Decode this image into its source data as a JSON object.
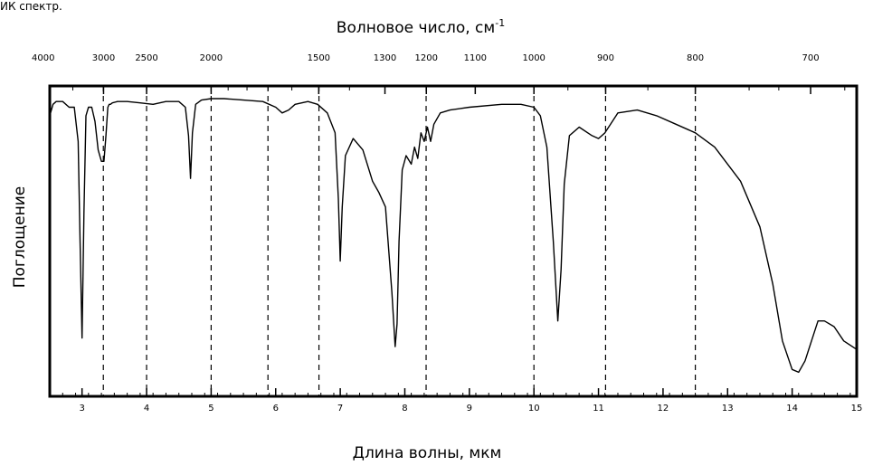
{
  "header": {
    "title": "ИК спектр."
  },
  "chart_data": {
    "type": "line",
    "title": "",
    "xlabel": "Длина волны, мкм",
    "x2label": "Волновое число, см",
    "x2label_sup": "-1",
    "ylabel": "Поглощение",
    "xlim": [
      2.5,
      15
    ],
    "x_ticks": [
      {
        "value": 3,
        "label": "3"
      },
      {
        "value": 4,
        "label": "4"
      },
      {
        "value": 5,
        "label": "5"
      },
      {
        "value": 6,
        "label": "6"
      },
      {
        "value": 7,
        "label": "7"
      },
      {
        "value": 8,
        "label": "8"
      },
      {
        "value": 9,
        "label": "9"
      },
      {
        "value": 10,
        "label": "10"
      },
      {
        "value": 11,
        "label": "11"
      },
      {
        "value": 12,
        "label": "12"
      },
      {
        "value": 13,
        "label": "13"
      },
      {
        "value": 14,
        "label": "14"
      },
      {
        "value": 15,
        "label": "15"
      }
    ],
    "x2_ticks": [
      {
        "value": 4000,
        "label": "4000"
      },
      {
        "value": 3000,
        "label": "3000"
      },
      {
        "value": 2500,
        "label": "2500"
      },
      {
        "value": 2000,
        "label": "2000"
      },
      {
        "value": 1500,
        "label": "1500"
      },
      {
        "value": 1300,
        "label": "1300"
      },
      {
        "value": 1200,
        "label": "1200"
      },
      {
        "value": 1100,
        "label": "1100"
      },
      {
        "value": 1000,
        "label": "1000"
      },
      {
        "value": 900,
        "label": "900"
      },
      {
        "value": 800,
        "label": "800"
      },
      {
        "value": 700,
        "label": "700"
      }
    ],
    "x_minor_step": 0.2,
    "x2_minor_values": [
      3500,
      1900,
      1800,
      1700,
      1600,
      1400,
      950,
      850,
      750,
      725,
      675
    ],
    "dashed_lines_wavelength_um": [
      3.33,
      4.0,
      5.0,
      5.88,
      6.67,
      8.33,
      10.0,
      11.11,
      12.5
    ],
    "ylim": [
      0,
      1
    ],
    "grid": false,
    "line_color": "#000000",
    "series": [
      {
        "x": [
          2.5,
          2.55,
          2.6,
          2.7,
          2.8,
          2.88,
          2.94,
          2.97,
          3.0,
          3.03,
          3.06,
          3.1,
          3.15,
          3.2,
          3.25,
          3.3,
          3.34,
          3.37,
          3.4,
          3.42,
          3.44,
          3.47,
          3.55,
          3.7,
          3.9,
          4.1,
          4.3,
          4.5,
          4.6,
          4.65,
          4.68,
          4.71,
          4.76,
          4.85,
          5.0,
          5.2,
          5.5,
          5.8,
          6.0,
          6.1,
          6.2,
          6.3,
          6.5,
          6.65,
          6.8,
          6.92,
          6.97,
          7.0,
          7.03,
          7.08,
          7.2,
          7.35,
          7.5,
          7.6,
          7.7,
          7.8,
          7.85,
          7.88,
          7.91,
          7.96,
          8.02,
          8.1,
          8.15,
          8.2,
          8.25,
          8.3,
          8.35,
          8.4,
          8.45,
          8.55,
          8.7,
          9.0,
          9.5,
          9.8,
          10.0,
          10.1,
          10.2,
          10.3,
          10.37,
          10.42,
          10.47,
          10.55,
          10.7,
          10.9,
          11.0,
          11.1,
          11.3,
          11.6,
          11.9,
          12.2,
          12.5,
          12.8,
          13.2,
          13.5,
          13.7,
          13.85,
          14.0,
          14.1,
          14.2,
          14.3,
          14.4,
          14.5,
          14.65,
          14.8,
          15.0
        ],
        "y": [
          0.06,
          0.02,
          0.01,
          0.01,
          0.03,
          0.03,
          0.15,
          0.5,
          0.84,
          0.4,
          0.06,
          0.03,
          0.03,
          0.08,
          0.18,
          0.22,
          0.22,
          0.13,
          0.03,
          0.02,
          0.02,
          0.015,
          0.01,
          0.01,
          0.015,
          0.02,
          0.01,
          0.01,
          0.03,
          0.13,
          0.28,
          0.12,
          0.02,
          0.005,
          0.0,
          0.0,
          0.005,
          0.01,
          0.03,
          0.05,
          0.04,
          0.02,
          0.01,
          0.02,
          0.05,
          0.12,
          0.35,
          0.57,
          0.38,
          0.2,
          0.14,
          0.18,
          0.29,
          0.33,
          0.38,
          0.68,
          0.87,
          0.79,
          0.5,
          0.25,
          0.2,
          0.23,
          0.17,
          0.21,
          0.12,
          0.15,
          0.1,
          0.15,
          0.09,
          0.05,
          0.04,
          0.03,
          0.02,
          0.02,
          0.03,
          0.06,
          0.17,
          0.5,
          0.78,
          0.6,
          0.3,
          0.13,
          0.1,
          0.13,
          0.14,
          0.12,
          0.05,
          0.04,
          0.06,
          0.09,
          0.12,
          0.17,
          0.29,
          0.45,
          0.65,
          0.85,
          0.95,
          0.96,
          0.92,
          0.85,
          0.78,
          0.78,
          0.8,
          0.85,
          0.88
        ]
      }
    ]
  }
}
